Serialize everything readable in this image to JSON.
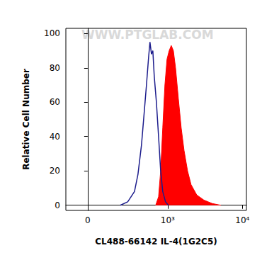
{
  "chart_data": {
    "type": "line",
    "xlabel": "CL488-66142 IL-4(1G2C5)",
    "ylabel": "Relative Cell Number",
    "annotations": [
      {
        "text": "WWW.PTGLAB.COM"
      }
    ],
    "xlim": [
      -125,
      11300
    ],
    "xticks": [
      {
        "value": 0,
        "label": "0"
      },
      {
        "value": 1000,
        "label": "10³"
      },
      {
        "value": 10000,
        "label": "10⁴"
      }
    ],
    "ylim": [
      -3,
      103
    ],
    "yticks": [
      0,
      20,
      40,
      60,
      80,
      100
    ],
    "grid": false,
    "series": [
      {
        "type": "line",
        "color": "#1c1c8c",
        "x": [
          203,
          270,
          343,
          386,
          434,
          477,
          511,
          547,
          572,
          600,
          627,
          656,
          702,
          752,
          803,
          857,
          935,
          1024
        ],
        "values": [
          0,
          2,
          8,
          18,
          35,
          55,
          70,
          86,
          95,
          88,
          90,
          75,
          60,
          40,
          20,
          8,
          2,
          0
        ]
      },
      {
        "type": "area",
        "color": "#ff0000",
        "x": [
          687,
          752,
          803,
          857,
          917,
          979,
          1047,
          1118,
          1194,
          1277,
          1394,
          1521,
          1660,
          1851,
          2063,
          2457,
          3062,
          3962,
          5155
        ],
        "values": [
          0,
          5,
          20,
          45,
          70,
          85,
          90,
          93,
          90,
          80,
          62,
          45,
          32,
          20,
          12,
          6,
          3,
          1,
          0
        ]
      }
    ]
  }
}
